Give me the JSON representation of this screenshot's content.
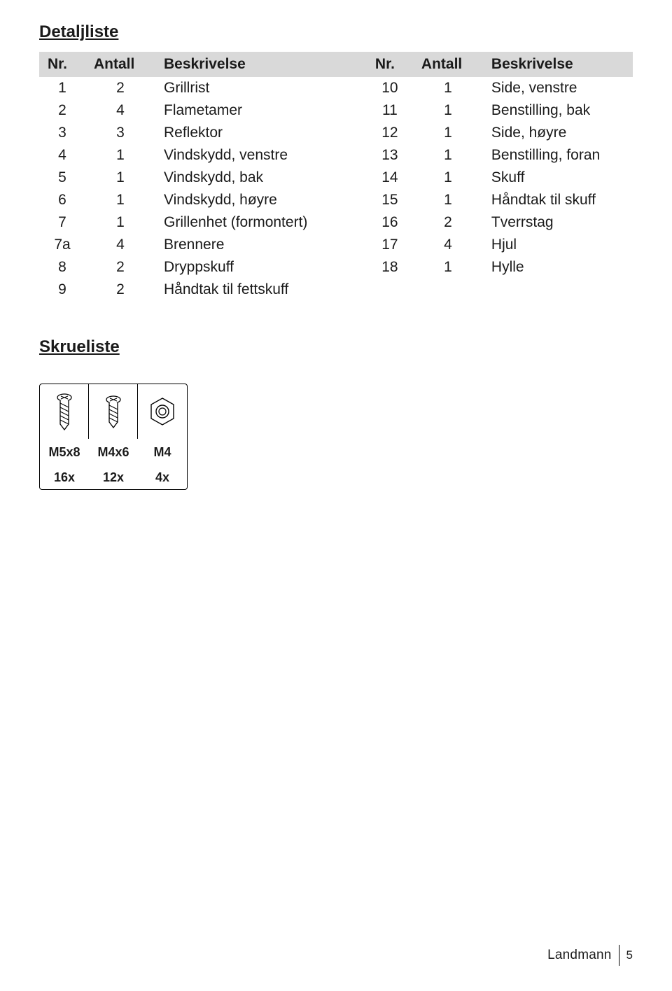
{
  "detaljliste": {
    "title": "Detaljliste",
    "headers": {
      "nr": "Nr.",
      "antall": "Antall",
      "besk": "Beskrivelse"
    },
    "left": [
      {
        "nr": "1",
        "antall": "2",
        "besk": "Grillrist"
      },
      {
        "nr": "2",
        "antall": "4",
        "besk": "Flametamer"
      },
      {
        "nr": "3",
        "antall": "3",
        "besk": "Reflektor"
      },
      {
        "nr": "4",
        "antall": "1",
        "besk": "Vindskydd, venstre"
      },
      {
        "nr": "5",
        "antall": "1",
        "besk": "Vindskydd, bak"
      },
      {
        "nr": "6",
        "antall": "1",
        "besk": "Vindskydd, høyre"
      },
      {
        "nr": "7",
        "antall": "1",
        "besk": "Grillenhet (formontert)"
      },
      {
        "nr": "7a",
        "antall": "4",
        "besk": "Brennere"
      },
      {
        "nr": "8",
        "antall": "2",
        "besk": "Dryppskuff"
      },
      {
        "nr": "9",
        "antall": "2",
        "besk": "Håndtak til fettskuff"
      }
    ],
    "right": [
      {
        "nr": "10",
        "antall": "1",
        "besk": "Side, venstre"
      },
      {
        "nr": "11",
        "antall": "1",
        "besk": "Benstilling, bak"
      },
      {
        "nr": "12",
        "antall": "1",
        "besk": "Side, høyre"
      },
      {
        "nr": "13",
        "antall": "1",
        "besk": "Benstilling, foran"
      },
      {
        "nr": "14",
        "antall": "1",
        "besk": "Skuff"
      },
      {
        "nr": "15",
        "antall": "1",
        "besk": "Håndtak til skuff"
      },
      {
        "nr": "16",
        "antall": "2",
        "besk": "Tverrstag"
      },
      {
        "nr": "17",
        "antall": "4",
        "besk": "Hjul"
      },
      {
        "nr": "18",
        "antall": "1",
        "besk": "Hylle"
      },
      {
        "nr": "",
        "antall": "",
        "besk": ""
      }
    ]
  },
  "skrueliste": {
    "title": "Skrueliste",
    "items": [
      {
        "label": "M5x8",
        "qty": "16x"
      },
      {
        "label": "M4x6",
        "qty": "12x"
      },
      {
        "label": "M4",
        "qty": "4x"
      }
    ]
  },
  "footer": {
    "brand": "Landmann",
    "page": "5"
  }
}
